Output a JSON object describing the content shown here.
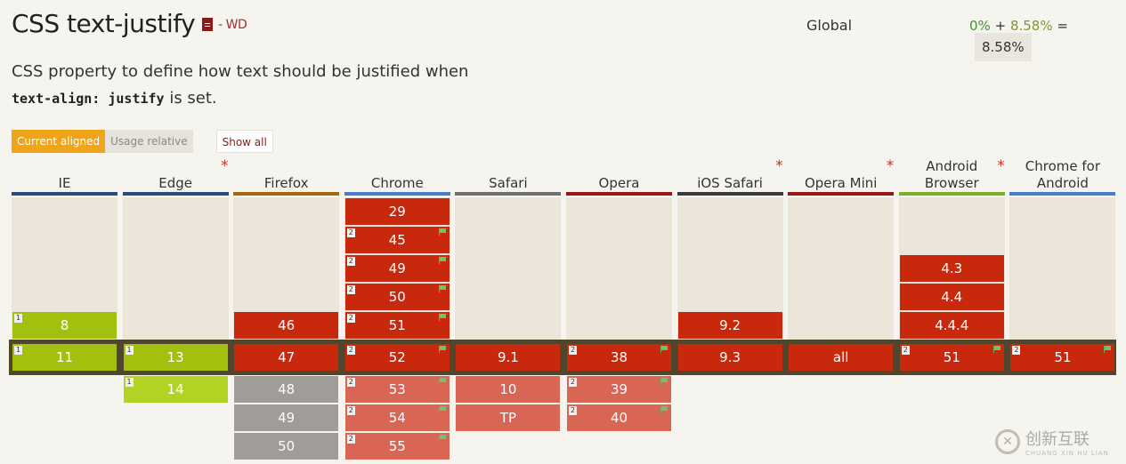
{
  "header": {
    "title": "CSS text-justify",
    "status": "- WD",
    "description_pre": "CSS property to define how text should be justified when ",
    "description_code": "text-align: justify",
    "description_post": " is set."
  },
  "global": {
    "label": "Global",
    "supported": "0%",
    "plus": "+",
    "partial": "8.58%",
    "equals": "=",
    "total": "8.58%"
  },
  "buttons": {
    "current_aligned": "Current aligned",
    "usage_relative": "Usage relative",
    "show_all": "Show all"
  },
  "browsers": [
    {
      "name": "IE",
      "bar_color": "#2e4a7a",
      "star": ""
    },
    {
      "name": "Edge",
      "bar_color": "#2e4a7a",
      "star": "*"
    },
    {
      "name": "Firefox",
      "bar_color": "#a4660e",
      "star": ""
    },
    {
      "name": "Chrome",
      "bar_color": "#4b7dc7",
      "star": ""
    },
    {
      "name": "Safari",
      "bar_color": "#6e6e6e",
      "star": ""
    },
    {
      "name": "Opera",
      "bar_color": "#9a1616",
      "star": ""
    },
    {
      "name": "iOS Safari",
      "bar_color": "#3a3a3a",
      "star": "*"
    },
    {
      "name": "Opera Mini",
      "bar_color": "#9a1616",
      "star": "*"
    },
    {
      "name": "Android Browser",
      "bar_color": "#7bb026",
      "star": "*"
    },
    {
      "name": "Chrome for Android",
      "bar_color": "#4b7dc7",
      "star": ""
    }
  ],
  "cells": [
    {
      "col": 0,
      "row": 4,
      "version": "8",
      "support": "y",
      "note": "1",
      "flag": false
    },
    {
      "col": 0,
      "row": 5,
      "version": "11",
      "support": "y",
      "note": "1",
      "flag": false
    },
    {
      "col": 1,
      "row": 5,
      "version": "13",
      "support": "y",
      "note": "1",
      "flag": false
    },
    {
      "col": 1,
      "row": 6,
      "version": "14",
      "support": "yf",
      "note": "1",
      "flag": false
    },
    {
      "col": 2,
      "row": 4,
      "version": "46",
      "support": "n",
      "note": "",
      "flag": false
    },
    {
      "col": 2,
      "row": 5,
      "version": "47",
      "support": "n",
      "note": "",
      "flag": false
    },
    {
      "col": 2,
      "row": 6,
      "version": "48",
      "support": "u",
      "note": "",
      "flag": false
    },
    {
      "col": 2,
      "row": 7,
      "version": "49",
      "support": "u",
      "note": "",
      "flag": false
    },
    {
      "col": 2,
      "row": 8,
      "version": "50",
      "support": "u",
      "note": "",
      "flag": false
    },
    {
      "col": 3,
      "row": 0,
      "version": "29",
      "support": "n",
      "note": "",
      "flag": false
    },
    {
      "col": 3,
      "row": 1,
      "version": "45",
      "support": "n",
      "note": "2",
      "flag": true
    },
    {
      "col": 3,
      "row": 2,
      "version": "49",
      "support": "n",
      "note": "2",
      "flag": true
    },
    {
      "col": 3,
      "row": 3,
      "version": "50",
      "support": "n",
      "note": "2",
      "flag": true
    },
    {
      "col": 3,
      "row": 4,
      "version": "51",
      "support": "n",
      "note": "2",
      "flag": true
    },
    {
      "col": 3,
      "row": 5,
      "version": "52",
      "support": "n",
      "note": "2",
      "flag": true
    },
    {
      "col": 3,
      "row": 6,
      "version": "53",
      "support": "nf",
      "note": "2",
      "flag": true
    },
    {
      "col": 3,
      "row": 7,
      "version": "54",
      "support": "nf",
      "note": "2",
      "flag": true
    },
    {
      "col": 3,
      "row": 8,
      "version": "55",
      "support": "nf",
      "note": "2",
      "flag": true
    },
    {
      "col": 4,
      "row": 5,
      "version": "9.1",
      "support": "n",
      "note": "",
      "flag": false
    },
    {
      "col": 4,
      "row": 6,
      "version": "10",
      "support": "nf",
      "note": "",
      "flag": false
    },
    {
      "col": 4,
      "row": 7,
      "version": "TP",
      "support": "nf",
      "note": "",
      "flag": false
    },
    {
      "col": 5,
      "row": 5,
      "version": "38",
      "support": "n",
      "note": "2",
      "flag": true
    },
    {
      "col": 5,
      "row": 6,
      "version": "39",
      "support": "nf",
      "note": "2",
      "flag": true
    },
    {
      "col": 5,
      "row": 7,
      "version": "40",
      "support": "nf",
      "note": "2",
      "flag": true
    },
    {
      "col": 6,
      "row": 4,
      "version": "9.2",
      "support": "n",
      "note": "",
      "flag": false
    },
    {
      "col": 6,
      "row": 5,
      "version": "9.3",
      "support": "n",
      "note": "",
      "flag": false
    },
    {
      "col": 7,
      "row": 5,
      "version": "all",
      "support": "n",
      "note": "",
      "flag": false
    },
    {
      "col": 8,
      "row": 2,
      "version": "4.3",
      "support": "n",
      "note": "",
      "flag": false
    },
    {
      "col": 8,
      "row": 3,
      "version": "4.4",
      "support": "n",
      "note": "",
      "flag": false
    },
    {
      "col": 8,
      "row": 4,
      "version": "4.4.4",
      "support": "n",
      "note": "",
      "flag": false
    },
    {
      "col": 8,
      "row": 5,
      "version": "51",
      "support": "n",
      "note": "2",
      "flag": true
    },
    {
      "col": 9,
      "row": 5,
      "version": "51",
      "support": "n",
      "note": "2",
      "flag": true
    }
  ],
  "watermark": {
    "brand": "创新互联",
    "sub": "CHUANG XIN HU LIAN",
    "logo_glyph": "✕"
  }
}
